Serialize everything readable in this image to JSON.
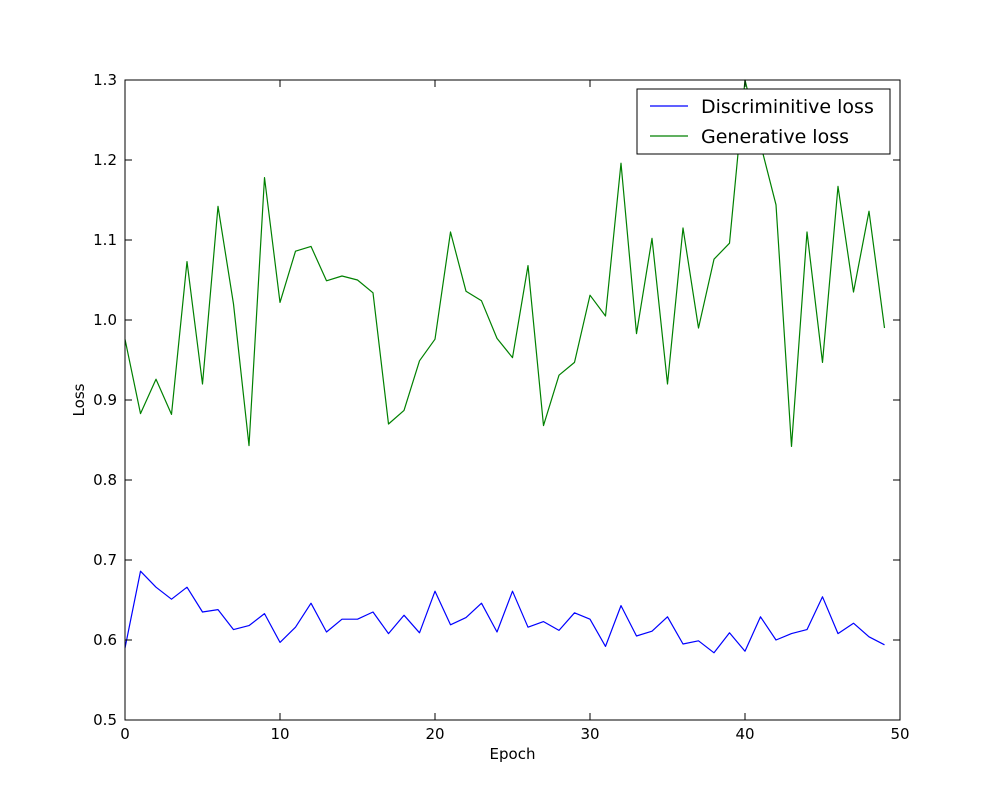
{
  "chart_data": {
    "type": "line",
    "title": "",
    "xlabel": "Epoch",
    "ylabel": "Loss",
    "xlim": [
      0,
      50
    ],
    "ylim": [
      0.5,
      1.3
    ],
    "xticks": [
      0,
      10,
      20,
      30,
      40,
      50
    ],
    "yticks": [
      "0.5",
      "0.6",
      "0.7",
      "0.8",
      "0.9",
      "1.0",
      "1.1",
      "1.2",
      "1.3"
    ],
    "grid": false,
    "legend_position": "top-right",
    "x": [
      0,
      1,
      2,
      3,
      4,
      5,
      6,
      7,
      8,
      9,
      10,
      11,
      12,
      13,
      14,
      15,
      16,
      17,
      18,
      19,
      20,
      21,
      22,
      23,
      24,
      25,
      26,
      27,
      28,
      29,
      30,
      31,
      32,
      33,
      34,
      35,
      36,
      37,
      38,
      39,
      40,
      41,
      42,
      43,
      44,
      45,
      46,
      47,
      48,
      49
    ],
    "series": [
      {
        "name": "Discriminitive loss",
        "color": "#0000ff",
        "values": [
          0.59,
          0.686,
          0.666,
          0.651,
          0.666,
          0.635,
          0.638,
          0.613,
          0.618,
          0.633,
          0.597,
          0.616,
          0.646,
          0.61,
          0.626,
          0.626,
          0.635,
          0.608,
          0.631,
          0.609,
          0.661,
          0.619,
          0.628,
          0.646,
          0.61,
          0.661,
          0.616,
          0.623,
          0.612,
          0.634,
          0.626,
          0.592,
          0.643,
          0.605,
          0.611,
          0.629,
          0.595,
          0.599,
          0.584,
          0.609,
          0.586,
          0.629,
          0.6,
          0.608,
          0.613,
          0.654,
          0.608,
          0.621,
          0.604,
          0.594
        ]
      },
      {
        "name": "Generative loss",
        "color": "#008000",
        "values": [
          0.976,
          0.883,
          0.926,
          0.882,
          1.073,
          0.92,
          1.142,
          1.02,
          0.843,
          1.178,
          1.022,
          1.086,
          1.092,
          1.049,
          1.055,
          1.05,
          1.034,
          0.87,
          0.887,
          0.949,
          0.976,
          1.11,
          1.036,
          1.024,
          0.977,
          0.953,
          1.068,
          0.868,
          0.931,
          0.947,
          1.031,
          1.005,
          1.196,
          0.983,
          1.102,
          0.92,
          1.115,
          0.99,
          1.076,
          1.096,
          1.3,
          1.22,
          1.144,
          0.842,
          1.11,
          0.947,
          1.167,
          1.035,
          1.136,
          0.99
        ]
      }
    ]
  }
}
